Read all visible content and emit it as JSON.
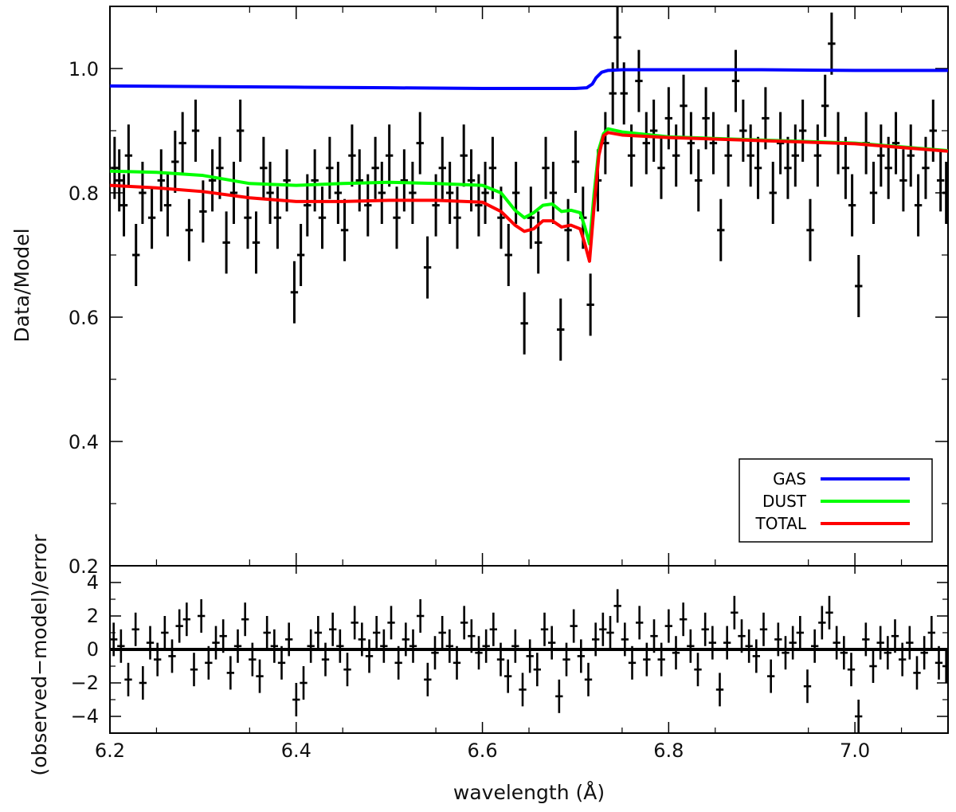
{
  "chart_data": [
    {
      "type": "scatter",
      "panel": "top",
      "ylabel": "Data/Model",
      "xlim": [
        6.2,
        7.1
      ],
      "ylim": [
        0.2,
        1.1
      ],
      "yticks": [
        0.2,
        0.4,
        0.6,
        0.8,
        1.0
      ],
      "ytick_labels": [
        "0.2",
        "0.4",
        "0.6",
        "0.8",
        "1.0"
      ],
      "legend": {
        "placement": "bottom-right",
        "entries": [
          {
            "name": "GAS",
            "color": "#0000ff"
          },
          {
            "name": "DUST",
            "color": "#00ff00"
          },
          {
            "name": "TOTAL",
            "color": "#ff0000"
          }
        ]
      },
      "series": [
        {
          "name": "GAS",
          "color": "#0000ff",
          "x": [
            6.2,
            6.3,
            6.4,
            6.5,
            6.6,
            6.7,
            6.712,
            6.718,
            6.722,
            6.728,
            6.735,
            6.75,
            6.8,
            6.9,
            7.0,
            7.1
          ],
          "y": [
            0.972,
            0.971,
            0.97,
            0.969,
            0.968,
            0.968,
            0.969,
            0.975,
            0.985,
            0.994,
            0.997,
            0.998,
            0.998,
            0.998,
            0.997,
            0.997
          ]
        },
        {
          "name": "DUST",
          "color": "#00ff00",
          "x": [
            6.2,
            6.25,
            6.3,
            6.35,
            6.4,
            6.45,
            6.5,
            6.55,
            6.6,
            6.62,
            6.635,
            6.645,
            6.655,
            6.665,
            6.675,
            6.685,
            6.695,
            6.705,
            6.71,
            6.715,
            6.72,
            6.725,
            6.73,
            6.735,
            6.75,
            6.8,
            6.9,
            7.0,
            7.1
          ],
          "y": [
            0.835,
            0.833,
            0.828,
            0.815,
            0.812,
            0.815,
            0.817,
            0.815,
            0.812,
            0.8,
            0.772,
            0.76,
            0.768,
            0.78,
            0.782,
            0.77,
            0.772,
            0.768,
            0.745,
            0.718,
            0.8,
            0.87,
            0.895,
            0.903,
            0.898,
            0.89,
            0.885,
            0.88,
            0.868
          ]
        },
        {
          "name": "TOTAL",
          "color": "#ff0000",
          "x": [
            6.2,
            6.25,
            6.3,
            6.35,
            6.4,
            6.45,
            6.5,
            6.55,
            6.6,
            6.62,
            6.635,
            6.645,
            6.655,
            6.665,
            6.675,
            6.685,
            6.695,
            6.705,
            6.71,
            6.715,
            6.72,
            6.725,
            6.73,
            6.735,
            6.75,
            6.8,
            6.9,
            7.0,
            7.1
          ],
          "y": [
            0.812,
            0.808,
            0.802,
            0.792,
            0.786,
            0.786,
            0.788,
            0.788,
            0.785,
            0.77,
            0.748,
            0.738,
            0.742,
            0.755,
            0.755,
            0.745,
            0.748,
            0.742,
            0.718,
            0.69,
            0.78,
            0.86,
            0.892,
            0.897,
            0.893,
            0.889,
            0.884,
            0.879,
            0.867
          ]
        },
        {
          "name": "data",
          "color": "#000000",
          "marker": "errorbar-cross",
          "xerr": 0.004,
          "points": [
            [
              6.205,
              0.84,
              0.05
            ],
            [
              6.21,
              0.82,
              0.05
            ],
            [
              6.215,
              0.78,
              0.05
            ],
            [
              6.22,
              0.86,
              0.05
            ],
            [
              6.228,
              0.7,
              0.05
            ],
            [
              6.235,
              0.8,
              0.05
            ],
            [
              6.245,
              0.76,
              0.05
            ],
            [
              6.255,
              0.82,
              0.05
            ],
            [
              6.262,
              0.78,
              0.05
            ],
            [
              6.27,
              0.85,
              0.05
            ],
            [
              6.278,
              0.88,
              0.05
            ],
            [
              6.285,
              0.74,
              0.05
            ],
            [
              6.292,
              0.9,
              0.05
            ],
            [
              6.3,
              0.77,
              0.05
            ],
            [
              6.31,
              0.82,
              0.05
            ],
            [
              6.318,
              0.84,
              0.05
            ],
            [
              6.325,
              0.72,
              0.05
            ],
            [
              6.333,
              0.8,
              0.05
            ],
            [
              6.34,
              0.9,
              0.05
            ],
            [
              6.348,
              0.76,
              0.05
            ],
            [
              6.357,
              0.72,
              0.05
            ],
            [
              6.365,
              0.84,
              0.05
            ],
            [
              6.372,
              0.8,
              0.05
            ],
            [
              6.38,
              0.76,
              0.05
            ],
            [
              6.39,
              0.82,
              0.05
            ],
            [
              6.398,
              0.64,
              0.05
            ],
            [
              6.405,
              0.7,
              0.05
            ],
            [
              6.412,
              0.78,
              0.05
            ],
            [
              6.42,
              0.82,
              0.05
            ],
            [
              6.428,
              0.76,
              0.05
            ],
            [
              6.436,
              0.84,
              0.05
            ],
            [
              6.445,
              0.8,
              0.05
            ],
            [
              6.452,
              0.74,
              0.05
            ],
            [
              6.46,
              0.86,
              0.05
            ],
            [
              6.468,
              0.82,
              0.05
            ],
            [
              6.477,
              0.78,
              0.05
            ],
            [
              6.485,
              0.84,
              0.05
            ],
            [
              6.492,
              0.8,
              0.05
            ],
            [
              6.5,
              0.86,
              0.05
            ],
            [
              6.508,
              0.76,
              0.05
            ],
            [
              6.516,
              0.82,
              0.05
            ],
            [
              6.525,
              0.8,
              0.05
            ],
            [
              6.533,
              0.88,
              0.05
            ],
            [
              6.541,
              0.68,
              0.05
            ],
            [
              6.55,
              0.78,
              0.05
            ],
            [
              6.557,
              0.84,
              0.05
            ],
            [
              6.565,
              0.8,
              0.05
            ],
            [
              6.573,
              0.76,
              0.05
            ],
            [
              6.58,
              0.86,
              0.05
            ],
            [
              6.588,
              0.82,
              0.05
            ],
            [
              6.596,
              0.78,
              0.05
            ],
            [
              6.603,
              0.8,
              0.05
            ],
            [
              6.611,
              0.84,
              0.05
            ],
            [
              6.62,
              0.76,
              0.05
            ],
            [
              6.628,
              0.7,
              0.05
            ],
            [
              6.636,
              0.8,
              0.05
            ],
            [
              6.645,
              0.59,
              0.05
            ],
            [
              6.652,
              0.76,
              0.05
            ],
            [
              6.66,
              0.72,
              0.05
            ],
            [
              6.668,
              0.84,
              0.05
            ],
            [
              6.676,
              0.8,
              0.05
            ],
            [
              6.684,
              0.58,
              0.05
            ],
            [
              6.692,
              0.74,
              0.05
            ],
            [
              6.7,
              0.85,
              0.05
            ],
            [
              6.708,
              0.76,
              0.05
            ],
            [
              6.716,
              0.62,
              0.05
            ],
            [
              6.724,
              0.82,
              0.05
            ],
            [
              6.732,
              0.88,
              0.05
            ],
            [
              6.74,
              0.96,
              0.05
            ],
            [
              6.745,
              1.05,
              0.05
            ],
            [
              6.752,
              0.96,
              0.05
            ],
            [
              6.76,
              0.86,
              0.05
            ],
            [
              6.768,
              0.98,
              0.05
            ],
            [
              6.776,
              0.88,
              0.05
            ],
            [
              6.784,
              0.9,
              0.05
            ],
            [
              6.792,
              0.84,
              0.05
            ],
            [
              6.8,
              0.92,
              0.05
            ],
            [
              6.808,
              0.86,
              0.05
            ],
            [
              6.816,
              0.94,
              0.05
            ],
            [
              6.824,
              0.88,
              0.05
            ],
            [
              6.832,
              0.82,
              0.05
            ],
            [
              6.84,
              0.92,
              0.05
            ],
            [
              6.848,
              0.88,
              0.05
            ],
            [
              6.856,
              0.74,
              0.05
            ],
            [
              6.864,
              0.86,
              0.05
            ],
            [
              6.872,
              0.98,
              0.05
            ],
            [
              6.88,
              0.9,
              0.05
            ],
            [
              6.888,
              0.86,
              0.05
            ],
            [
              6.896,
              0.84,
              0.05
            ],
            [
              6.904,
              0.92,
              0.05
            ],
            [
              6.912,
              0.8,
              0.05
            ],
            [
              6.92,
              0.88,
              0.05
            ],
            [
              6.928,
              0.84,
              0.05
            ],
            [
              6.936,
              0.86,
              0.05
            ],
            [
              6.944,
              0.9,
              0.05
            ],
            [
              6.952,
              0.74,
              0.05
            ],
            [
              6.96,
              0.86,
              0.05
            ],
            [
              6.968,
              0.94,
              0.05
            ],
            [
              6.975,
              1.04,
              0.05
            ],
            [
              6.982,
              0.88,
              0.05
            ],
            [
              6.99,
              0.84,
              0.05
            ],
            [
              6.997,
              0.78,
              0.05
            ],
            [
              7.004,
              0.65,
              0.05
            ],
            [
              7.012,
              0.88,
              0.05
            ],
            [
              7.02,
              0.8,
              0.05
            ],
            [
              7.028,
              0.86,
              0.05
            ],
            [
              7.036,
              0.84,
              0.05
            ],
            [
              7.044,
              0.88,
              0.05
            ],
            [
              7.052,
              0.82,
              0.05
            ],
            [
              7.06,
              0.86,
              0.05
            ],
            [
              7.068,
              0.78,
              0.05
            ],
            [
              7.076,
              0.84,
              0.05
            ],
            [
              7.084,
              0.9,
              0.05
            ],
            [
              7.092,
              0.82,
              0.05
            ],
            [
              7.098,
              0.8,
              0.05
            ]
          ]
        }
      ]
    },
    {
      "type": "scatter",
      "panel": "bottom",
      "ylabel": "(observed−model)/error",
      "xlabel": "wavelength (Å)",
      "xlim": [
        6.2,
        7.1
      ],
      "ylim": [
        -5,
        5
      ],
      "xticks": [
        6.2,
        6.4,
        6.6,
        6.8,
        7.0
      ],
      "xtick_labels": [
        "6.2",
        "6.4",
        "6.6",
        "6.8",
        "7.0"
      ],
      "yticks": [
        -4,
        -2,
        0,
        2,
        4
      ],
      "ytick_labels": [
        "−4",
        "−2",
        "0",
        "2",
        "4"
      ],
      "zero_line": 0,
      "series": [
        {
          "name": "residuals",
          "color": "#000000",
          "marker": "errorbar-cross",
          "xerr": 0.004,
          "yerr": 1.0,
          "values": [
            0.6,
            0.2,
            -1.8,
            1.2,
            -2.0,
            0.4,
            -0.6,
            1.0,
            -0.4,
            1.4,
            1.8,
            -1.2,
            2.0,
            -0.8,
            0.4,
            0.8,
            -1.4,
            0.2,
            1.8,
            -0.6,
            -1.6,
            1.0,
            0.2,
            -0.8,
            0.6,
            -3.0,
            -2.0,
            0.2,
            1.0,
            -0.6,
            1.2,
            0.2,
            -1.2,
            1.6,
            0.6,
            -0.4,
            1.0,
            0.2,
            1.6,
            -0.8,
            0.6,
            0.2,
            2.0,
            -1.8,
            -0.2,
            1.0,
            0.2,
            -0.8,
            1.6,
            0.8,
            -0.2,
            0.2,
            1.2,
            -0.6,
            -1.6,
            0.2,
            -2.4,
            -0.4,
            -1.2,
            1.2,
            0.4,
            -2.8,
            -0.6,
            1.4,
            -0.4,
            -1.8,
            0.6,
            1.2,
            1.0,
            2.6,
            0.6,
            -0.8,
            1.6,
            -0.6,
            0.8,
            -0.6,
            1.4,
            -0.2,
            1.8,
            0.2,
            -1.2,
            1.2,
            0.4,
            -2.4,
            0.4,
            2.2,
            0.8,
            0.2,
            -0.4,
            1.2,
            -1.6,
            0.6,
            -0.2,
            0.4,
            1.0,
            -2.2,
            0.2,
            1.6,
            2.2,
            0.4,
            -0.2,
            -1.2,
            -4.0,
            0.6,
            -1.0,
            0.4,
            -0.2,
            0.8,
            -0.6,
            0.4,
            -1.4,
            -0.2,
            1.0,
            -0.8,
            -1.0
          ]
        }
      ]
    }
  ]
}
